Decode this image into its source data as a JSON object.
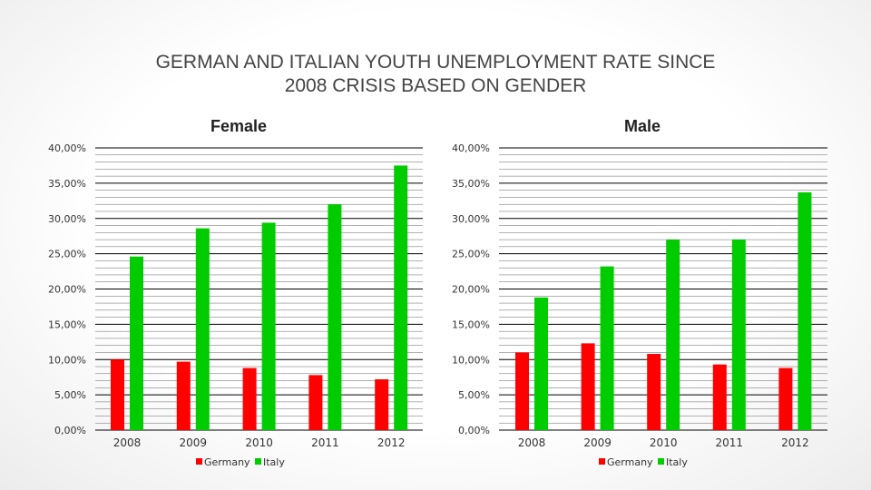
{
  "page": {
    "title_line1": "GERMAN AND ITALIAN YOUTH UNEMPLOYMENT RATE SINCE",
    "title_line2": "2008 CRISIS BASED ON GENDER"
  },
  "colors": {
    "germany": "#ff0000",
    "italy": "#00cc00",
    "grid": "#000000"
  },
  "chart_data": [
    {
      "type": "bar",
      "title": "Female",
      "categories": [
        "2008",
        "2009",
        "2010",
        "2011",
        "2012"
      ],
      "series": [
        {
          "name": "Germany",
          "values": [
            0.1,
            0.097,
            0.088,
            0.078,
            0.072
          ]
        },
        {
          "name": "Italy",
          "values": [
            0.246,
            0.286,
            0.294,
            0.32,
            0.375
          ]
        }
      ],
      "ylim": [
        0,
        0.4
      ],
      "yticks": [
        "0,00%",
        "5,00%",
        "10,00%",
        "15,00%",
        "20,00%",
        "25,00%",
        "30,00%",
        "35,00%",
        "40,00%"
      ],
      "grid": true,
      "legend": "bottom"
    },
    {
      "type": "bar",
      "title": "Male",
      "categories": [
        "2008",
        "2009",
        "2010",
        "2011",
        "2012"
      ],
      "series": [
        {
          "name": "Germany",
          "values": [
            0.11,
            0.123,
            0.108,
            0.093,
            0.088
          ]
        },
        {
          "name": "Italy",
          "values": [
            0.188,
            0.232,
            0.27,
            0.27,
            0.337
          ]
        }
      ],
      "ylim": [
        0,
        0.4
      ],
      "yticks": [
        "0,00%",
        "5,00%",
        "10,00%",
        "15,00%",
        "20,00%",
        "25,00%",
        "30,00%",
        "35,00%",
        "40,00%"
      ],
      "grid": true,
      "legend": "bottom"
    }
  ]
}
